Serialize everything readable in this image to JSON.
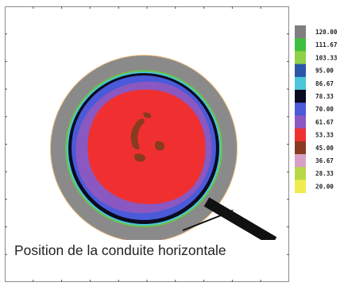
{
  "chart_data": {
    "type": "heatmap",
    "title": "",
    "xlabel": "",
    "ylabel": "",
    "colorbar": {
      "levels": [
        "120.00",
        "111.67",
        "103.33",
        "95.00",
        "86.67",
        "78.33",
        "70.00",
        "61.67",
        "53.33",
        "45.00",
        "36.67",
        "28.33",
        "20.00"
      ],
      "values": [
        120.0,
        111.67,
        103.33,
        95.0,
        86.67,
        78.33,
        70.0,
        61.67,
        53.33,
        45.0,
        36.67,
        28.33,
        20.0
      ],
      "colors": [
        "#7f7f7f",
        "#3fbf3f",
        "#8fd048",
        "#2a55a8",
        "#4cc6d8",
        "#0a0a20",
        "#4a5ad8",
        "#8a58c0",
        "#f03030",
        "#8a3a20",
        "#d8a0c8",
        "#b8d848",
        "#f0ec50"
      ]
    },
    "field_regions": [
      {
        "zone": "outer wall ring",
        "level": "120.00"
      },
      {
        "zone": "inner boundary layer",
        "level": "86.67"
      },
      {
        "zone": "dark ring",
        "level": "78.33"
      },
      {
        "zone": "outer fluid",
        "level": "70.00"
      },
      {
        "zone": "mid fluid",
        "level": "61.67"
      },
      {
        "zone": "core",
        "level": "53.33"
      },
      {
        "zone": "central spots",
        "level": "45.00"
      }
    ]
  },
  "annotation": {
    "caption": "Position de la conduite horizontale"
  },
  "colors": {
    "frame": "#8a8a8a",
    "pipe_bar": "#111111",
    "arrow": "#111111"
  }
}
